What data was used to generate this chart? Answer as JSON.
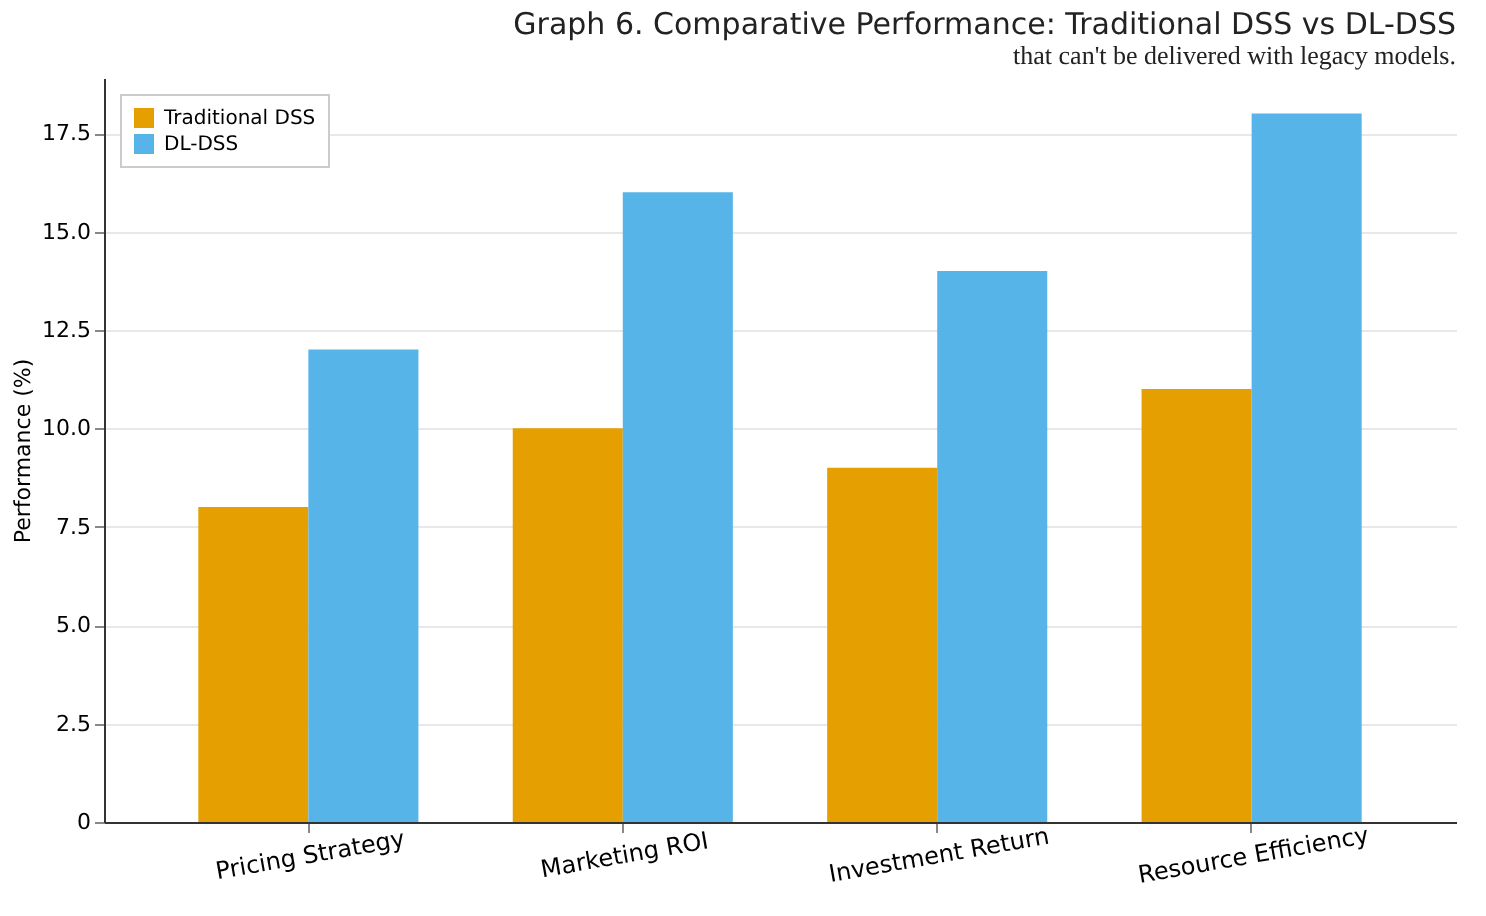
{
  "chart_data": {
    "type": "bar",
    "title": "Graph 6. Comparative Performance: Traditional DSS vs DL-DSS",
    "ylabel": "Performance (%)",
    "categories": [
      "Pricing Strategy",
      "Marketing ROI",
      "Investment Return",
      "Resource Efficiency"
    ],
    "series": [
      {
        "name": "Traditional DSS",
        "color": "#e69f00",
        "values": [
          8,
          10,
          9,
          11
        ]
      },
      {
        "name": "DL-DSS",
        "color": "#56b4e9",
        "values": [
          12,
          16,
          14,
          18
        ]
      }
    ],
    "ylim": [
      0,
      18.9
    ],
    "yticks": [
      0,
      {
        "value": 2.5,
        "label": "2.5"
      },
      {
        "value": 5,
        "label": "5.0"
      },
      {
        "value": 7.5,
        "label": "7.5"
      },
      {
        "value": 10,
        "label": "10.0"
      },
      {
        "value": 12.5,
        "label": "12.5"
      },
      {
        "value": 15,
        "label": "15.0"
      },
      {
        "value": 17.5,
        "label": "17.5"
      }
    ],
    "grid": "y",
    "legend": "top left",
    "annotations": [
      "that can't be delivered with legacy models."
    ]
  }
}
